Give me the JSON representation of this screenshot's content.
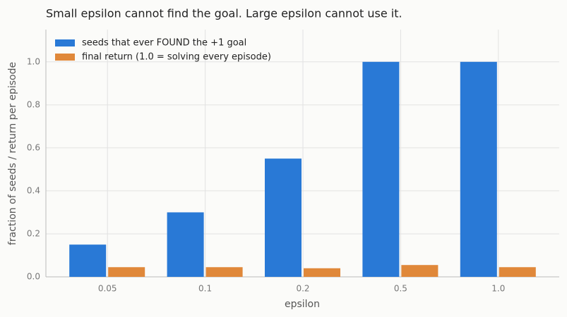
{
  "chart_data": {
    "type": "bar",
    "title": "Small epsilon cannot find the goal. Large epsilon cannot use it.",
    "x_label": "epsilon",
    "y_label": "fraction of seeds / return per episode",
    "categories": [
      "0.05",
      "0.1",
      "0.2",
      "0.5",
      "1.0"
    ],
    "series": [
      {
        "name": "seeds that ever FOUND the +1 goal",
        "color": "#2979d6",
        "values": [
          0.15,
          0.3,
          0.55,
          1.0,
          1.0
        ]
      },
      {
        "name": "final return (1.0 = solving every episode)",
        "color": "#e0883a",
        "values": [
          0.045,
          0.045,
          0.04,
          0.055,
          0.045
        ]
      }
    ],
    "ylim": [
      0,
      1.15
    ],
    "yticks": [
      {
        "value": 0,
        "label": "0.0"
      },
      0.2,
      0.4,
      0.6,
      0.8,
      {
        "value": 1,
        "label": "1.0"
      }
    ],
    "grid": true,
    "legend": "upper-left"
  }
}
